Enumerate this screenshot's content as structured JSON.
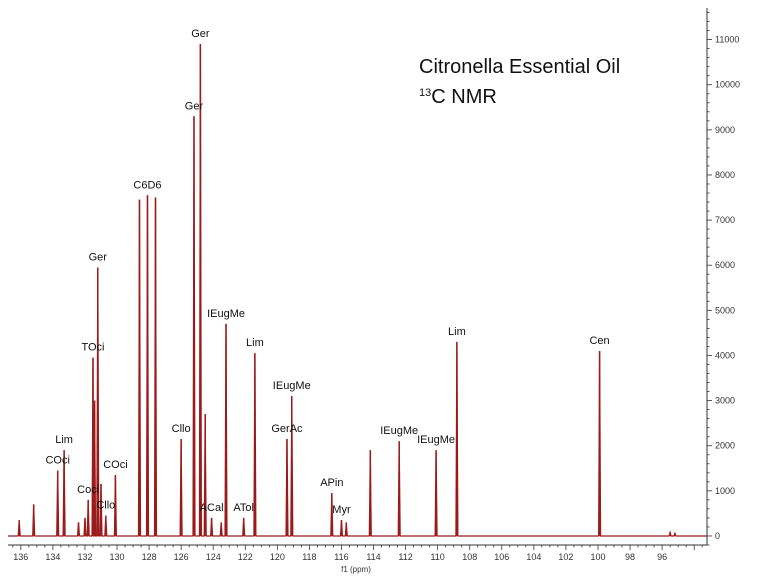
{
  "chart_data": {
    "type": "line",
    "title": "Citronella Essential Oil",
    "subtitle_sup": "13",
    "subtitle_main": "C NMR",
    "xlabel": "f1 (ppm)",
    "ylabel": "",
    "x_reversed": true,
    "xlim": [
      136.8,
      93.2
    ],
    "ylim": [
      -200,
      11700
    ],
    "x_ticks": [
      {
        "value": 136,
        "label": "136"
      },
      {
        "value": 134,
        "label": "134"
      },
      {
        "value": 132,
        "label": "132"
      },
      {
        "value": 130,
        "label": "130"
      },
      {
        "value": 128,
        "label": "128"
      },
      {
        "value": 126,
        "label": "126"
      },
      {
        "value": 124,
        "label": "124"
      },
      {
        "value": 122,
        "label": "122"
      },
      {
        "value": 120,
        "label": "120"
      },
      {
        "value": 118,
        "label": "118"
      },
      {
        "value": 116,
        "label": "116"
      },
      {
        "value": 114,
        "label": "114"
      },
      {
        "value": 112,
        "label": "112"
      },
      {
        "value": 110,
        "label": "110"
      },
      {
        "value": 108,
        "label": "108"
      },
      {
        "value": 106,
        "label": "106"
      },
      {
        "value": 104,
        "label": "104"
      },
      {
        "value": 102,
        "label": "102"
      },
      {
        "value": 100,
        "label": "100"
      },
      {
        "value": 98,
        "label": "98"
      },
      {
        "value": 96,
        "label": "96"
      }
    ],
    "y_ticks": [
      {
        "value": 0,
        "label": "0"
      },
      {
        "value": 1000,
        "label": "1000"
      },
      {
        "value": 2000,
        "label": "2000"
      },
      {
        "value": 3000,
        "label": "3000"
      },
      {
        "value": 4000,
        "label": "4000"
      },
      {
        "value": 5000,
        "label": "5000"
      },
      {
        "value": 6000,
        "label": "6000"
      },
      {
        "value": 7000,
        "label": "7000"
      },
      {
        "value": 8000,
        "label": "8000"
      },
      {
        "value": 9000,
        "label": "9000"
      },
      {
        "value": 10000,
        "label": "10000"
      },
      {
        "value": 11000,
        "label": "11000"
      }
    ],
    "peaks": [
      {
        "x": 136.1,
        "y": 350
      },
      {
        "x": 135.2,
        "y": 700
      },
      {
        "x": 133.7,
        "y": 1450,
        "label": "COci"
      },
      {
        "x": 133.3,
        "y": 1900,
        "label": "Lim"
      },
      {
        "x": 132.4,
        "y": 300
      },
      {
        "x": 132.0,
        "y": 400
      },
      {
        "x": 131.8,
        "y": 800,
        "label": "Coci"
      },
      {
        "x": 131.5,
        "y": 3950,
        "label": "TOci"
      },
      {
        "x": 131.4,
        "y": 3000
      },
      {
        "x": 131.2,
        "y": 5950,
        "label": "Ger"
      },
      {
        "x": 131.0,
        "y": 1150
      },
      {
        "x": 130.7,
        "y": 450,
        "label": "Cllo"
      },
      {
        "x": 130.1,
        "y": 1350,
        "label": "COci"
      },
      {
        "x": 128.6,
        "y": 7450
      },
      {
        "x": 128.1,
        "y": 7550,
        "label": "C6D6"
      },
      {
        "x": 127.6,
        "y": 7500
      },
      {
        "x": 126.0,
        "y": 2150,
        "label": "Cllo"
      },
      {
        "x": 125.2,
        "y": 9300,
        "label": "Ger"
      },
      {
        "x": 124.8,
        "y": 10900,
        "label": "Ger"
      },
      {
        "x": 124.5,
        "y": 2700
      },
      {
        "x": 124.1,
        "y": 400,
        "label": "ACal"
      },
      {
        "x": 123.5,
        "y": 300
      },
      {
        "x": 123.2,
        "y": 4700,
        "label": "IEugMe"
      },
      {
        "x": 122.1,
        "y": 400,
        "label": "ATol"
      },
      {
        "x": 121.4,
        "y": 4050,
        "label": "Lim"
      },
      {
        "x": 119.4,
        "y": 2150,
        "label": "GerAc"
      },
      {
        "x": 119.1,
        "y": 3100,
        "label": "IEugMe"
      },
      {
        "x": 116.6,
        "y": 950,
        "label": "APin"
      },
      {
        "x": 116.0,
        "y": 350,
        "label": "Myr"
      },
      {
        "x": 115.7,
        "y": 300
      },
      {
        "x": 114.2,
        "y": 1900
      },
      {
        "x": 112.4,
        "y": 2100,
        "label": "IEugMe"
      },
      {
        "x": 110.1,
        "y": 1900,
        "label": "IEugMe"
      },
      {
        "x": 108.8,
        "y": 4300,
        "label": "Lim"
      },
      {
        "x": 99.9,
        "y": 4100,
        "label": "Cen"
      },
      {
        "x": 95.5,
        "y": 80
      },
      {
        "x": 95.2,
        "y": 60
      }
    ],
    "grid": false,
    "line_color": "#9b1b1b",
    "axis_color": "#333333"
  }
}
